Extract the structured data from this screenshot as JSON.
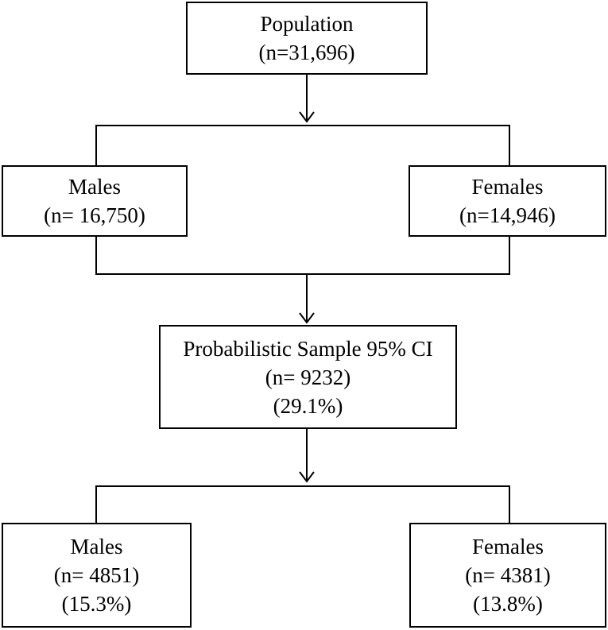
{
  "nodes": {
    "population": {
      "label": "Population",
      "count": "(n=31,696)"
    },
    "males_1": {
      "label": "Males",
      "count": "(n= 16,750)"
    },
    "females_1": {
      "label": "Females",
      "count": "(n=14,946)"
    },
    "sample": {
      "label": "Probabilistic Sample 95% CI",
      "count": "(n= 9232)",
      "percent": "(29.1%)"
    },
    "males_2": {
      "label": "Males",
      "count": "(n= 4851)",
      "percent": "(15.3%)"
    },
    "females_2": {
      "label": "Females",
      "count": "(n= 4381)",
      "percent": "(13.8%)"
    }
  },
  "colors": {
    "line": "#000000",
    "background": "#ffffff"
  }
}
